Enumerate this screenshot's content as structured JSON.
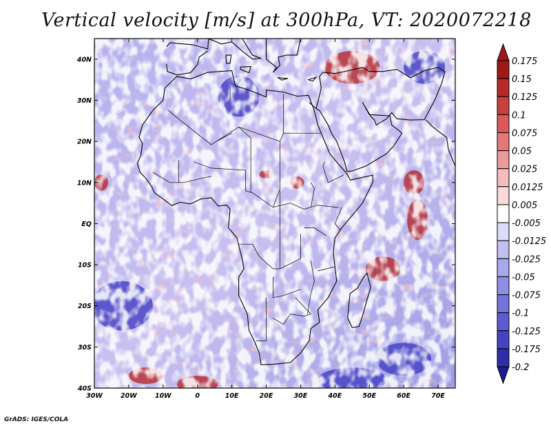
{
  "title": "Vertical velocity [m/s] at 300hPa, VT: 2020072218",
  "credit": "GrADS: IGES/COLA",
  "colors": {
    "frame": "#000000",
    "coast": "#000000",
    "background": "#ffffff"
  },
  "map": {
    "lon_range": [
      -30,
      75
    ],
    "lat_range": [
      -40,
      45
    ],
    "x_ticks": [
      {
        "value": -30,
        "label": "30W"
      },
      {
        "value": -20,
        "label": "20W"
      },
      {
        "value": -10,
        "label": "10W"
      },
      {
        "value": 0,
        "label": "0"
      },
      {
        "value": 10,
        "label": "10E"
      },
      {
        "value": 20,
        "label": "20E"
      },
      {
        "value": 30,
        "label": "30E"
      },
      {
        "value": 40,
        "label": "40E"
      },
      {
        "value": 50,
        "label": "50E"
      },
      {
        "value": 60,
        "label": "60E"
      },
      {
        "value": 70,
        "label": "70E"
      }
    ],
    "y_ticks": [
      {
        "value": 40,
        "label": "40N"
      },
      {
        "value": 30,
        "label": "30N"
      },
      {
        "value": 20,
        "label": "20N"
      },
      {
        "value": 10,
        "label": "10N"
      },
      {
        "value": 0,
        "label": "EQ"
      },
      {
        "value": -10,
        "label": "10S"
      },
      {
        "value": -20,
        "label": "20S"
      },
      {
        "value": -30,
        "label": "30S"
      },
      {
        "value": -40,
        "label": "40S"
      }
    ]
  },
  "colorbar": {
    "levels": [
      "0.175",
      "0.15",
      "0.125",
      "0.1",
      "0.075",
      "0.05",
      "0.025",
      "0.0125",
      "0.005",
      "-0.005",
      "-0.0125",
      "-0.025",
      "-0.05",
      "-0.075",
      "-0.1",
      "-0.125",
      "-0.175",
      "-0.2"
    ],
    "colors": [
      "#a01818",
      "#b82a2a",
      "#c84040",
      "#d85a5a",
      "#e47878",
      "#ec9a9a",
      "#f4bcbc",
      "#f9dada",
      "#ffffff",
      "#dcdcf8",
      "#c0c0f4",
      "#a8a8ee",
      "#8e8ee6",
      "#7474dc",
      "#5c5cd0",
      "#4444c0",
      "#2e2eaa",
      "#1c1c90"
    ]
  },
  "anomalies": [
    {
      "lon": 54,
      "lat": -11,
      "rlon": 5,
      "rlat": 3,
      "sign": "up"
    },
    {
      "lon": 64,
      "lat": 1,
      "rlon": 3,
      "rlat": 5,
      "sign": "up"
    },
    {
      "lon": 63,
      "lat": 10,
      "rlon": 3,
      "rlat": 3,
      "sign": "up"
    },
    {
      "lon": -28,
      "lat": 10,
      "rlon": 2,
      "rlat": 2,
      "sign": "up"
    },
    {
      "lon": 20,
      "lat": 12,
      "rlon": 2,
      "rlat": 1,
      "sign": "up"
    },
    {
      "lon": 29,
      "lat": 10,
      "rlon": 2,
      "rlat": 1.5,
      "sign": "up"
    },
    {
      "lon": 0,
      "lat": -39,
      "rlon": 6,
      "rlat": 2,
      "sign": "up"
    },
    {
      "lon": -15,
      "lat": -37,
      "rlon": 5,
      "rlat": 2,
      "sign": "up"
    },
    {
      "lon": 45,
      "lat": -38,
      "rlon": 10,
      "rlat": 3,
      "sign": "down"
    },
    {
      "lon": 60,
      "lat": -33,
      "rlon": 8,
      "rlat": 4,
      "sign": "down"
    },
    {
      "lon": -22,
      "lat": -20,
      "rlon": 9,
      "rlat": 6,
      "sign": "down"
    },
    {
      "lon": 66,
      "lat": 38,
      "rlon": 6,
      "rlat": 4,
      "sign": "down"
    },
    {
      "lon": 12,
      "lat": 31,
      "rlon": 6,
      "rlat": 5,
      "sign": "down"
    },
    {
      "lon": 45,
      "lat": 38,
      "rlon": 8,
      "rlat": 4,
      "sign": "up"
    }
  ]
}
